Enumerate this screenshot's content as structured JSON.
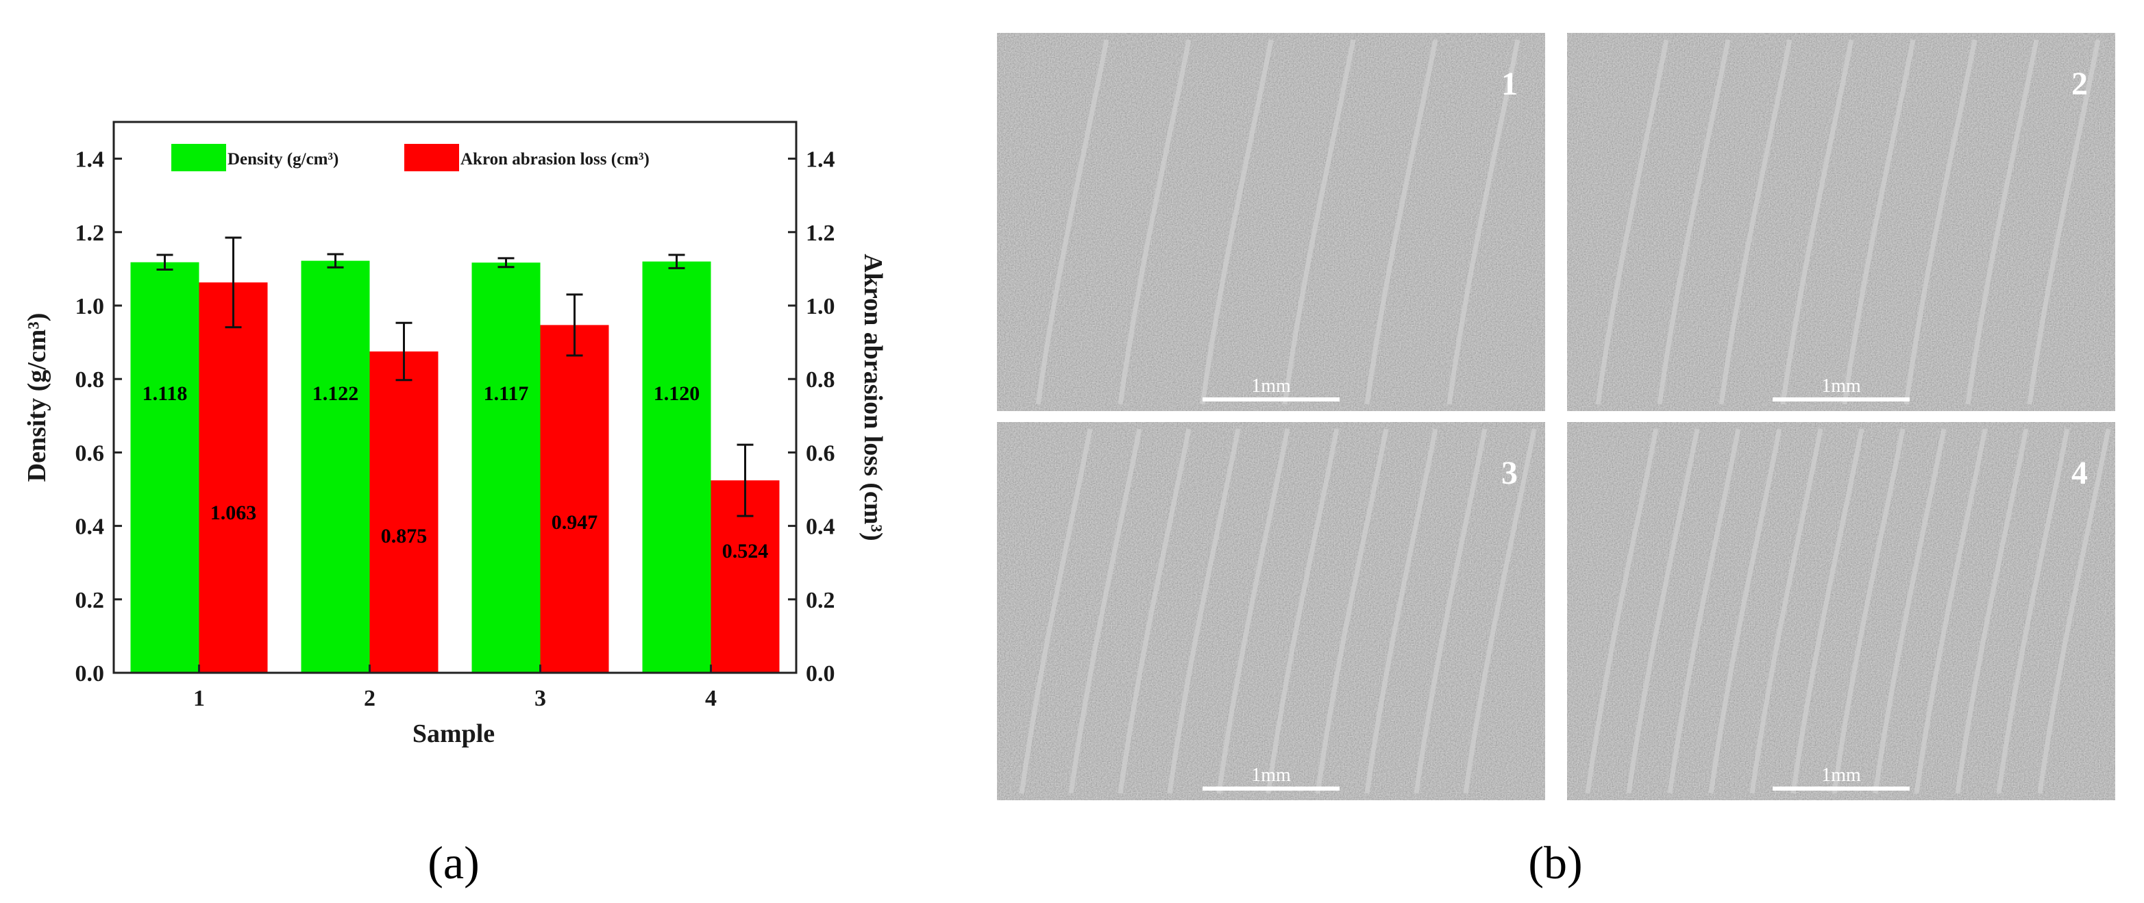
{
  "chart_data": {
    "type": "bar",
    "categories": [
      "1",
      "2",
      "3",
      "4"
    ],
    "xlabel": "Sample",
    "ylabel_left": "Density (g/cm³)",
    "ylabel_right": "Akron abrasion loss (cm³)",
    "ylim": [
      0.0,
      1.5
    ],
    "yticks": [
      "0.0",
      "0.2",
      "0.4",
      "0.6",
      "0.8",
      "1.0",
      "1.2",
      "1.4"
    ],
    "legend_position": "top",
    "series": [
      {
        "name": "Density (g/cm³)",
        "color": "#00ee00",
        "axis": "left",
        "values": [
          1.118,
          1.122,
          1.117,
          1.12
        ],
        "errors": [
          0.02,
          0.018,
          0.012,
          0.018
        ],
        "labels": [
          "1.118",
          "1.122",
          "1.117",
          "1.120"
        ]
      },
      {
        "name": "Akron abrasion loss (cm³)",
        "color": "#ff0000",
        "axis": "right",
        "values": [
          1.063,
          0.875,
          0.947,
          0.524
        ],
        "errors": [
          0.122,
          0.078,
          0.083,
          0.097
        ],
        "labels": [
          "1.063",
          "0.875",
          "0.947",
          "0.524"
        ]
      }
    ]
  },
  "panels": {
    "a": "(a)",
    "b": "(b)"
  },
  "micrographs": [
    {
      "label": "1",
      "scale": "1mm"
    },
    {
      "label": "2",
      "scale": "1mm"
    },
    {
      "label": "3",
      "scale": "1mm"
    },
    {
      "label": "4",
      "scale": "1mm"
    }
  ]
}
